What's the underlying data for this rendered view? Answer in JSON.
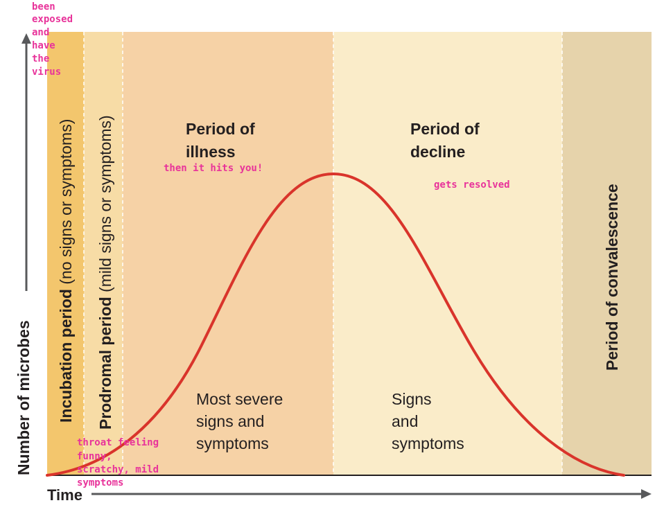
{
  "axes": {
    "y_label": "Number of microbes",
    "x_label": "Time"
  },
  "colors": {
    "incubation": "#f3c66d",
    "prodromal": "#f7dca6",
    "illness": "#f6d2a6",
    "decline": "#faecc9",
    "convalescence": "#e6d3ab",
    "curve": "#d9342b",
    "annotation": "#e8339a"
  },
  "periods": {
    "incubation": {
      "bold": "Incubation period",
      "paren": " (no signs or symptoms)"
    },
    "prodromal": {
      "bold": "Prodromal period",
      "paren": " (mild signs or symptoms)"
    },
    "illness": {
      "title_line1": "Period of",
      "title_line2": "illness",
      "desc_line1": "Most severe",
      "desc_line2": "signs and",
      "desc_line3": "symptoms"
    },
    "decline": {
      "title_line1": "Period of",
      "title_line2": "decline",
      "desc_line1": "Signs",
      "desc_line2": "and",
      "desc_line3": "symptoms"
    },
    "convalescence": {
      "title": "Period of convalescence"
    }
  },
  "annotations": {
    "exposed": [
      "been",
      "exposed",
      "and",
      "have",
      "the",
      "virus"
    ],
    "illness": "then it hits you!",
    "decline": "gets resolved",
    "prodromal": [
      "throat feeling",
      "funny,",
      "scratchy, mild",
      "symptoms"
    ]
  }
}
